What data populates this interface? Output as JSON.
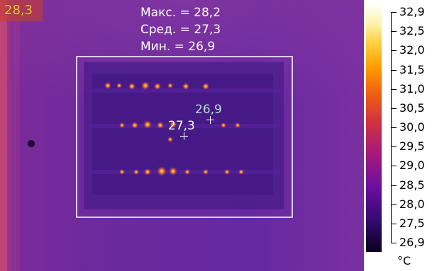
{
  "measurement": {
    "max": "Макс. = 28,2",
    "avg": "Сред. = 27,3",
    "min": "Мин. = 26,9"
  },
  "corner_reading": "28,3",
  "spots": [
    {
      "label": "26,9"
    },
    {
      "label": "27,3"
    }
  ],
  "scale": {
    "unit": "°C",
    "ticks": [
      "32,9",
      "32,5",
      "32,0",
      "31,5",
      "31,0",
      "30,5",
      "30,0",
      "29,5",
      "29,0",
      "28,5",
      "28,0",
      "27,5",
      "26,9"
    ]
  },
  "colors": {
    "background": "#6a2aa0",
    "hot": "#ffb040",
    "box": "#ffffff"
  }
}
